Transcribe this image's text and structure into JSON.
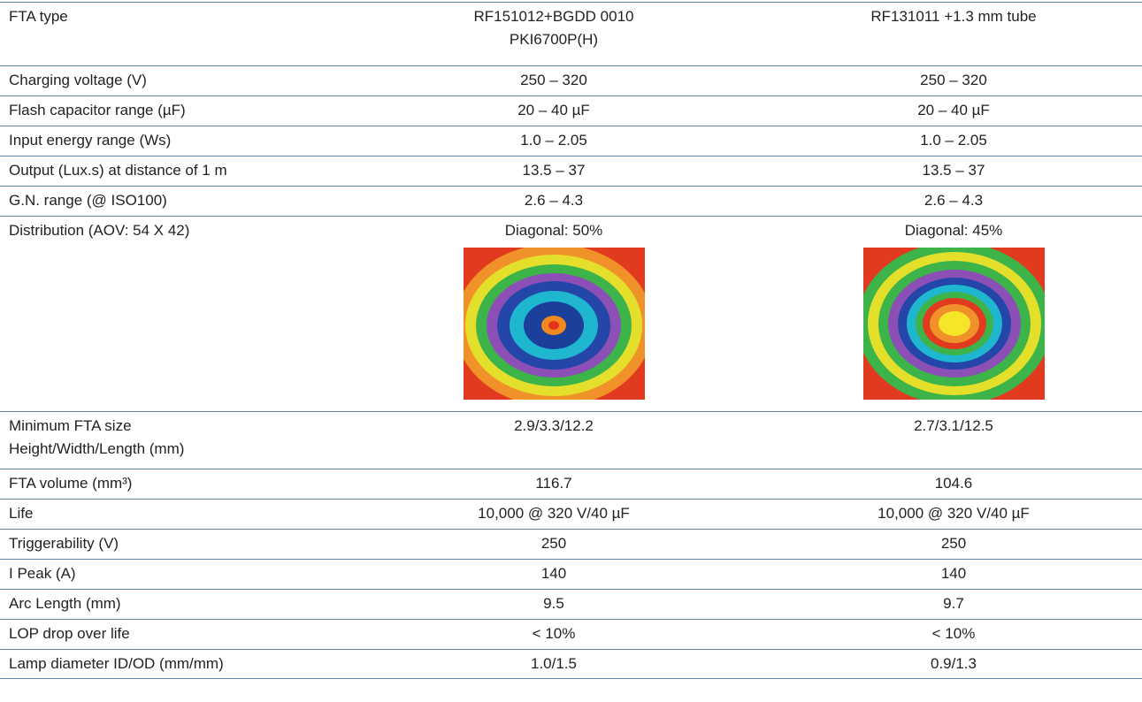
{
  "table": {
    "rows": [
      [
        "FTA type",
        "RF151012+BGDD 0010\nPKI6700P(H)",
        "RF131011 +1.3 mm tube"
      ],
      [
        "Charging voltage (V)",
        "250 – 320",
        "250 – 320"
      ],
      [
        "Flash capacitor range (µF)",
        "20 – 40 µF",
        "20 – 40 µF"
      ],
      [
        "Input energy range (Ws)",
        "1.0 – 2.05",
        "1.0 – 2.05"
      ],
      [
        "Output (Lux.s) at distance of 1 m",
        "13.5 – 37",
        "13.5 – 37"
      ],
      [
        "G.N. range (@ ISO100)",
        "2.6 – 4.3",
        "2.6 – 4.3"
      ],
      [
        "Distribution (AOV: 54 X 42)",
        "Diagonal: 50%",
        "Diagonal: 45%"
      ],
      [
        "Minimum FTA size\nHeight/Width/Length (mm)",
        "2.9/3.3/12.2",
        "2.7/3.1/12.5"
      ],
      [
        "FTA volume (mm³)",
        "116.7",
        "104.6"
      ],
      [
        "Life",
        "10,000 @ 320 V/40 µF",
        "10,000 @ 320 V/40 µF"
      ],
      [
        "Triggerability (V)",
        "250",
        "250"
      ],
      [
        "I Peak (A)",
        "140",
        "140"
      ],
      [
        "Arc Length (mm)",
        "9.5",
        "9.7"
      ],
      [
        "LOP drop over life",
        "< 10%",
        "< 10%"
      ],
      [
        "Lamp diameter ID/OD (mm/mm)",
        "1.0/1.5",
        "0.9/1.3"
      ]
    ]
  }
}
